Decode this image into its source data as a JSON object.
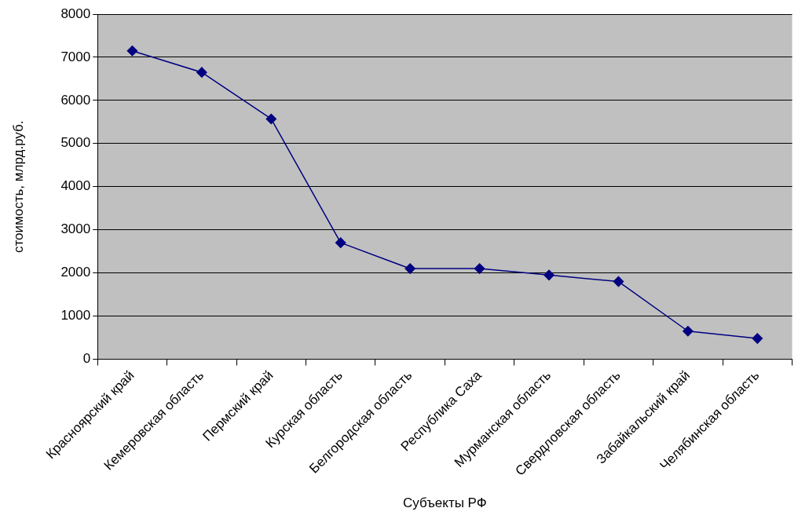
{
  "chart_data": {
    "type": "line",
    "xlabel": "Субъекты РФ",
    "ylabel": "стоимость, млрд.руб.",
    "categories": [
      "Красноярский край",
      "Кемеровская область",
      "Пермский край",
      "Курская область",
      "Белгородская область",
      "Республика Саха",
      "Мурманская область",
      "Свердловская область",
      "Забайкальский край",
      "Челябинская область"
    ],
    "series": [
      {
        "color": "#000080",
        "values": [
          7150,
          6650,
          5570,
          2700,
          2100,
          2100,
          1950,
          1800,
          650,
          480
        ]
      }
    ],
    "ylim": [
      0,
      8000
    ],
    "yticks": [
      0,
      1000,
      2000,
      3000,
      4000,
      5000,
      6000,
      7000,
      8000
    ],
    "grid": "y",
    "legend": false,
    "marker": "diamond",
    "line_style": "solid"
  }
}
